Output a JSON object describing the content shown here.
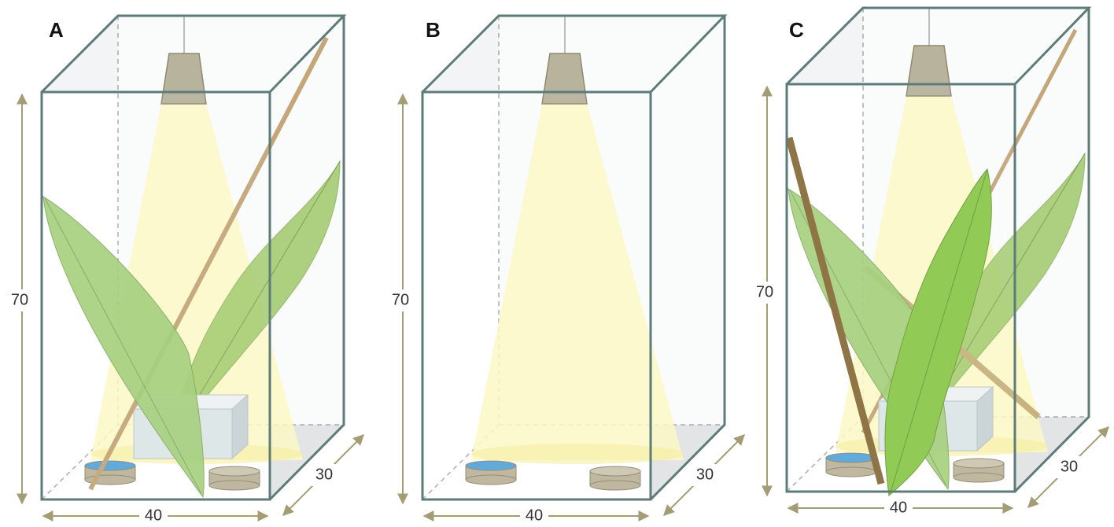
{
  "panels": [
    {
      "label": "A",
      "height": 70,
      "width": 40,
      "depth": 30
    },
    {
      "label": "B",
      "height": 70,
      "width": 40,
      "depth": 30
    },
    {
      "label": "C",
      "height": 70,
      "width": 40,
      "depth": 30
    }
  ]
}
